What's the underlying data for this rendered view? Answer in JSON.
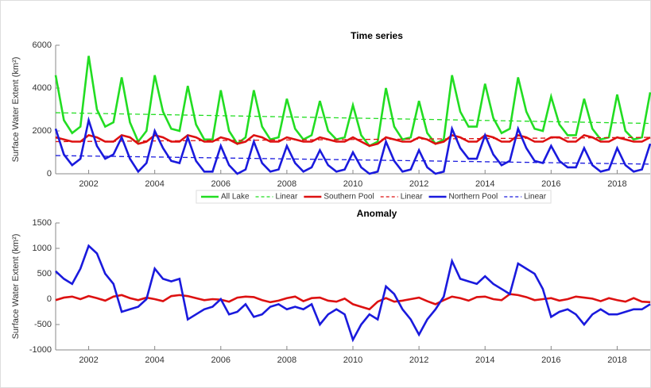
{
  "chart_data": [
    {
      "type": "line",
      "title": "Time series",
      "ylabel": "Surface Water Extent (km²)",
      "x": [
        2001,
        2001.25,
        2001.5,
        2001.75,
        2002,
        2002.25,
        2002.5,
        2002.75,
        2003,
        2003.25,
        2003.5,
        2003.75,
        2004,
        2004.25,
        2004.5,
        2004.75,
        2005,
        2005.25,
        2005.5,
        2005.75,
        2006,
        2006.25,
        2006.5,
        2006.75,
        2007,
        2007.25,
        2007.5,
        2007.75,
        2008,
        2008.25,
        2008.5,
        2008.75,
        2009,
        2009.25,
        2009.5,
        2009.75,
        2010,
        2010.25,
        2010.5,
        2010.75,
        2011,
        2011.25,
        2011.5,
        2011.75,
        2012,
        2012.25,
        2012.5,
        2012.75,
        2013,
        2013.25,
        2013.5,
        2013.75,
        2014,
        2014.25,
        2014.5,
        2014.75,
        2015,
        2015.25,
        2015.5,
        2015.75,
        2016,
        2016.25,
        2016.5,
        2016.75,
        2017,
        2017.25,
        2017.5,
        2017.75,
        2018,
        2018.25,
        2018.5,
        2018.75,
        2019
      ],
      "series": [
        {
          "name": "All Lake",
          "color": "#22dd22",
          "dash": false,
          "values": [
            4600,
            2500,
            1900,
            2200,
            5500,
            3000,
            2200,
            2400,
            4500,
            2400,
            1500,
            2000,
            4600,
            2900,
            2100,
            2000,
            4100,
            2300,
            1600,
            1600,
            3900,
            2000,
            1400,
            1700,
            3900,
            2200,
            1600,
            1700,
            3500,
            2100,
            1600,
            1800,
            3400,
            2000,
            1600,
            1700,
            3200,
            1800,
            1300,
            1500,
            4000,
            2200,
            1600,
            1700,
            3400,
            1900,
            1400,
            1600,
            4600,
            2900,
            2200,
            2200,
            4200,
            2600,
            1900,
            2100,
            4500,
            2900,
            2100,
            2000,
            3600,
            2300,
            1800,
            1800,
            3500,
            2100,
            1600,
            1700,
            3700,
            2000,
            1600,
            1700,
            3800
          ]
        },
        {
          "name": "Linear",
          "color": "#22dd22",
          "dash": true,
          "x": [
            2001,
            2019
          ],
          "values": [
            2850,
            2350
          ]
        },
        {
          "name": "Southern Pool",
          "color": "#dd1111",
          "dash": false,
          "values": [
            1700,
            1600,
            1500,
            1500,
            1800,
            1700,
            1500,
            1500,
            1800,
            1700,
            1400,
            1500,
            1800,
            1700,
            1500,
            1500,
            1800,
            1700,
            1500,
            1500,
            1700,
            1600,
            1400,
            1500,
            1800,
            1700,
            1500,
            1500,
            1700,
            1600,
            1500,
            1500,
            1700,
            1600,
            1500,
            1500,
            1700,
            1500,
            1300,
            1400,
            1700,
            1600,
            1500,
            1500,
            1700,
            1600,
            1400,
            1500,
            1800,
            1700,
            1500,
            1500,
            1800,
            1700,
            1500,
            1500,
            1800,
            1700,
            1500,
            1500,
            1700,
            1700,
            1500,
            1500,
            1800,
            1700,
            1500,
            1500,
            1700,
            1600,
            1500,
            1500,
            1700
          ]
        },
        {
          "name": "Linear",
          "color": "#dd1111",
          "dash": true,
          "x": [
            2001,
            2019
          ],
          "values": [
            1500,
            1700
          ]
        },
        {
          "name": "Northern Pool",
          "color": "#1a1add",
          "dash": false,
          "values": [
            2100,
            900,
            400,
            700,
            2500,
            1300,
            700,
            900,
            1700,
            700,
            100,
            500,
            2000,
            1200,
            600,
            500,
            1700,
            600,
            100,
            100,
            1300,
            400,
            0,
            200,
            1500,
            500,
            100,
            200,
            1300,
            500,
            100,
            300,
            1100,
            400,
            100,
            200,
            1000,
            300,
            0,
            100,
            1500,
            600,
            100,
            200,
            1100,
            300,
            0,
            100,
            2100,
            1200,
            700,
            700,
            1800,
            900,
            400,
            600,
            2100,
            1200,
            600,
            500,
            1300,
            600,
            300,
            300,
            1200,
            400,
            100,
            200,
            1200,
            400,
            100,
            200,
            1400
          ]
        },
        {
          "name": "Linear",
          "color": "#1a1add",
          "dash": true,
          "x": [
            2001,
            2019
          ],
          "values": [
            850,
            450
          ]
        }
      ],
      "xlim": [
        2001,
        2019
      ],
      "xticks": [
        2002,
        2004,
        2006,
        2008,
        2010,
        2012,
        2014,
        2016,
        2018
      ],
      "ylim": [
        0,
        6000
      ],
      "yticks": [
        0,
        2000,
        4000,
        6000
      ],
      "legend": "bottom-outside"
    },
    {
      "type": "line",
      "title": "Anomaly",
      "ylabel": "Surface Water Extent (km²)",
      "x": [
        2001,
        2001.25,
        2001.5,
        2001.75,
        2002,
        2002.25,
        2002.5,
        2002.75,
        2003,
        2003.25,
        2003.5,
        2003.75,
        2004,
        2004.25,
        2004.5,
        2004.75,
        2005,
        2005.25,
        2005.5,
        2005.75,
        2006,
        2006.25,
        2006.5,
        2006.75,
        2007,
        2007.25,
        2007.5,
        2007.75,
        2008,
        2008.25,
        2008.5,
        2008.75,
        2009,
        2009.25,
        2009.5,
        2009.75,
        2010,
        2010.25,
        2010.5,
        2010.75,
        2011,
        2011.25,
        2011.5,
        2011.75,
        2012,
        2012.25,
        2012.5,
        2012.75,
        2013,
        2013.25,
        2013.5,
        2013.75,
        2014,
        2014.25,
        2014.5,
        2014.75,
        2015,
        2015.25,
        2015.5,
        2015.75,
        2016,
        2016.25,
        2016.5,
        2016.75,
        2017,
        2017.25,
        2017.5,
        2017.75,
        2018,
        2018.25,
        2018.5,
        2018.75,
        2019
      ],
      "series": [
        {
          "color": "#dd1111",
          "values": [
            -20,
            30,
            50,
            0,
            60,
            20,
            -30,
            50,
            80,
            20,
            -20,
            30,
            0,
            -40,
            60,
            80,
            60,
            20,
            -20,
            0,
            -10,
            -50,
            30,
            50,
            40,
            -20,
            -60,
            -30,
            20,
            50,
            -40,
            20,
            30,
            -30,
            -50,
            10,
            -100,
            -150,
            -200,
            -50,
            20,
            -50,
            -30,
            0,
            30,
            -40,
            -100,
            -20,
            50,
            20,
            -30,
            40,
            50,
            0,
            -20,
            100,
            80,
            40,
            -20,
            0,
            20,
            -30,
            0,
            50,
            30,
            10,
            -40,
            20,
            -20,
            -50,
            20,
            -50,
            -60
          ]
        },
        {
          "color": "#1a1add",
          "values": [
            550,
            400,
            300,
            600,
            1050,
            900,
            500,
            300,
            -250,
            -200,
            -150,
            0,
            600,
            400,
            350,
            400,
            -400,
            -300,
            -200,
            -150,
            0,
            -300,
            -250,
            -100,
            -350,
            -300,
            -150,
            -100,
            -200,
            -150,
            -200,
            -100,
            -500,
            -300,
            -200,
            -300,
            -800,
            -500,
            -300,
            -400,
            250,
            100,
            -200,
            -400,
            -700,
            -400,
            -200,
            50,
            750,
            400,
            350,
            300,
            450,
            300,
            200,
            100,
            700,
            600,
            500,
            200,
            -350,
            -250,
            -200,
            -300,
            -500,
            -300,
            -200,
            -300,
            -300,
            -250,
            -200,
            -200,
            -100
          ]
        }
      ],
      "xlim": [
        2001,
        2019
      ],
      "xticks": [
        2002,
        2004,
        2006,
        2008,
        2010,
        2012,
        2014,
        2016,
        2018
      ],
      "ylim": [
        -1000,
        1500
      ],
      "yticks": [
        -1000,
        -500,
        0,
        500,
        1000,
        1500
      ]
    }
  ]
}
